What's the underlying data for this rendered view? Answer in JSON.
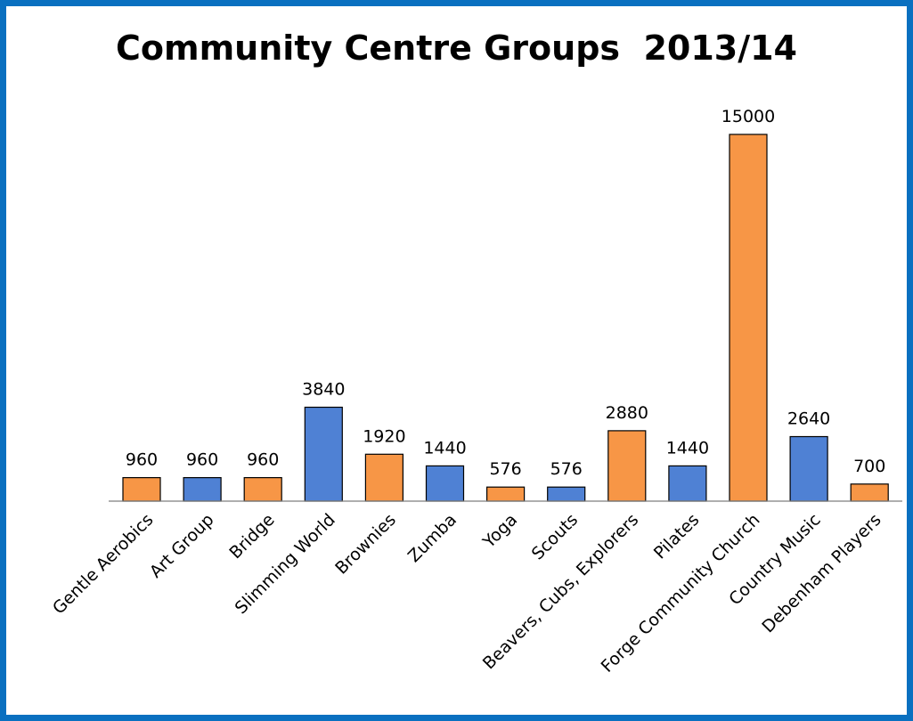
{
  "chart_data": {
    "type": "bar",
    "title": "Community Centre Groups  2013/14",
    "categories": [
      "Gentle Aerobics",
      "Art Group",
      "Bridge",
      "Slimming World",
      "Brownies",
      "Zumba",
      "Yoga",
      "Scouts",
      "Beavers, Cubs, Explorers",
      "Pilates",
      "Forge Community Church",
      "Country Music",
      "Debenham Players"
    ],
    "values": [
      960,
      960,
      960,
      3840,
      1920,
      1440,
      576,
      576,
      2880,
      1440,
      15000,
      2640,
      700
    ],
    "bar_colors": [
      "#f79646",
      "#4f81d4",
      "#f79646",
      "#4f81d4",
      "#f79646",
      "#4f81d4",
      "#f79646",
      "#4f81d4",
      "#f79646",
      "#4f81d4",
      "#f79646",
      "#4f81d4",
      "#f79646"
    ],
    "data_labels": true,
    "ylim": [
      0,
      15000
    ],
    "grid": false,
    "xlabel": "",
    "ylabel": ""
  },
  "colors": {
    "frame": "#0a70c0",
    "orange": "#f79646",
    "blue": "#4f81d4"
  }
}
